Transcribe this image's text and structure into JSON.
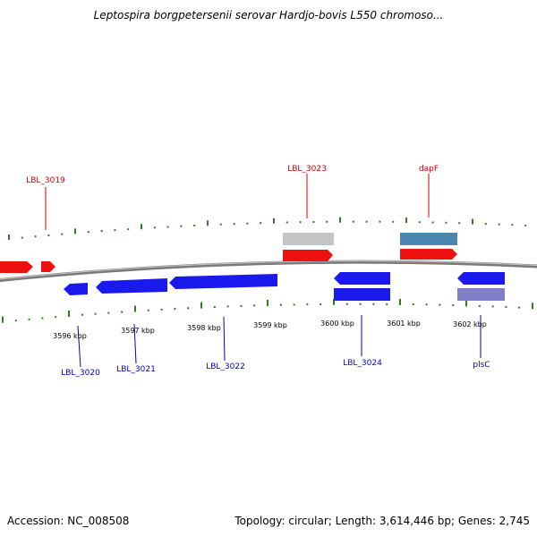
{
  "title": "Leptospira borgpetersenii serovar Hardjo-bovis L550 chromoso...",
  "footer": {
    "accession": "Accession: NC_008508",
    "summary": "Topology: circular; Length: 3,614,446 bp; Genes: 2,745"
  },
  "colors": {
    "forward_gene": "#ff0000",
    "reverse_gene": "#0000ee",
    "forward_gray": "#bfbfbf",
    "forward_steelblue": "#4a86b0",
    "reverse_purple": "#7f7fcc",
    "backbone": "#808080",
    "tick": "#2e7d1e",
    "label_forward": "#cc0000",
    "label_reverse": "#0000cc"
  },
  "scale": {
    "unit": "kbp",
    "labels": [
      "3596 kbp",
      "3597 kbp",
      "3598 kbp",
      "3599 kbp",
      "3600 kbp",
      "3601 kbp",
      "3602 kbp"
    ]
  },
  "gene_labels": {
    "forward": [
      "LBL_3019",
      "LBL_3023",
      "dapF"
    ],
    "reverse": [
      "LBL_3020",
      "LBL_3021",
      "LBL_3022",
      "LBL_3024",
      "plsC"
    ]
  }
}
